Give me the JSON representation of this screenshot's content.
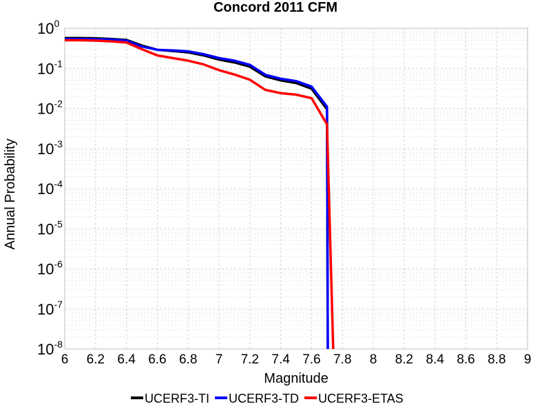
{
  "chart_data": {
    "type": "line",
    "title": "Concord 2011 CFM",
    "xlabel": "Magnitude",
    "ylabel": "Annual Probability",
    "xlim": [
      6,
      9
    ],
    "ylim": [
      1e-08,
      1
    ],
    "yscale": "log",
    "grid": true,
    "legend_position": "bottom",
    "x_ticks": [
      "6",
      "6.2",
      "6.4",
      "6.6",
      "6.8",
      "7",
      "7.2",
      "7.4",
      "7.6",
      "7.8",
      "8",
      "8.2",
      "8.4",
      "8.6",
      "8.8",
      "9"
    ],
    "y_ticks": [
      {
        "base": "10",
        "exp": "0"
      },
      {
        "base": "10",
        "exp": "-1"
      },
      {
        "base": "10",
        "exp": "-2"
      },
      {
        "base": "10",
        "exp": "-3"
      },
      {
        "base": "10",
        "exp": "-4"
      },
      {
        "base": "10",
        "exp": "-5"
      },
      {
        "base": "10",
        "exp": "-6"
      },
      {
        "base": "10",
        "exp": "-7"
      },
      {
        "base": "10",
        "exp": "-8"
      }
    ],
    "series": [
      {
        "name": "UCERF3-TI",
        "color": "#000000",
        "points": [
          [
            6.0,
            0.57
          ],
          [
            6.1,
            0.57
          ],
          [
            6.2,
            0.56
          ],
          [
            6.3,
            0.54
          ],
          [
            6.4,
            0.51
          ],
          [
            6.5,
            0.37
          ],
          [
            6.6,
            0.29
          ],
          [
            6.7,
            0.27
          ],
          [
            6.8,
            0.25
          ],
          [
            6.9,
            0.21
          ],
          [
            7.0,
            0.165
          ],
          [
            7.1,
            0.14
          ],
          [
            7.2,
            0.11
          ],
          [
            7.3,
            0.063
          ],
          [
            7.4,
            0.05
          ],
          [
            7.5,
            0.043
          ],
          [
            7.6,
            0.031
          ],
          [
            7.7,
            0.0095
          ],
          [
            7.705,
            1e-08
          ]
        ]
      },
      {
        "name": "UCERF3-TD",
        "color": "#0000ff",
        "points": [
          [
            6.0,
            0.54
          ],
          [
            6.1,
            0.54
          ],
          [
            6.2,
            0.53
          ],
          [
            6.3,
            0.52
          ],
          [
            6.4,
            0.49
          ],
          [
            6.5,
            0.35
          ],
          [
            6.6,
            0.29
          ],
          [
            6.7,
            0.28
          ],
          [
            6.8,
            0.265
          ],
          [
            6.9,
            0.225
          ],
          [
            7.0,
            0.18
          ],
          [
            7.1,
            0.155
          ],
          [
            7.2,
            0.122
          ],
          [
            7.3,
            0.069
          ],
          [
            7.4,
            0.055
          ],
          [
            7.5,
            0.048
          ],
          [
            7.6,
            0.035
          ],
          [
            7.7,
            0.011
          ],
          [
            7.705,
            1e-08
          ]
        ]
      },
      {
        "name": "UCERF3-ETAS",
        "color": "#ff0000",
        "points": [
          [
            6.0,
            0.5
          ],
          [
            6.1,
            0.5
          ],
          [
            6.2,
            0.49
          ],
          [
            6.3,
            0.47
          ],
          [
            6.4,
            0.44
          ],
          [
            6.5,
            0.3
          ],
          [
            6.6,
            0.21
          ],
          [
            6.7,
            0.18
          ],
          [
            6.8,
            0.155
          ],
          [
            6.9,
            0.125
          ],
          [
            7.0,
            0.09
          ],
          [
            7.1,
            0.07
          ],
          [
            7.2,
            0.052
          ],
          [
            7.3,
            0.029
          ],
          [
            7.4,
            0.024
          ],
          [
            7.5,
            0.022
          ],
          [
            7.6,
            0.018
          ],
          [
            7.7,
            0.004
          ],
          [
            7.74,
            1e-08
          ]
        ]
      }
    ]
  }
}
